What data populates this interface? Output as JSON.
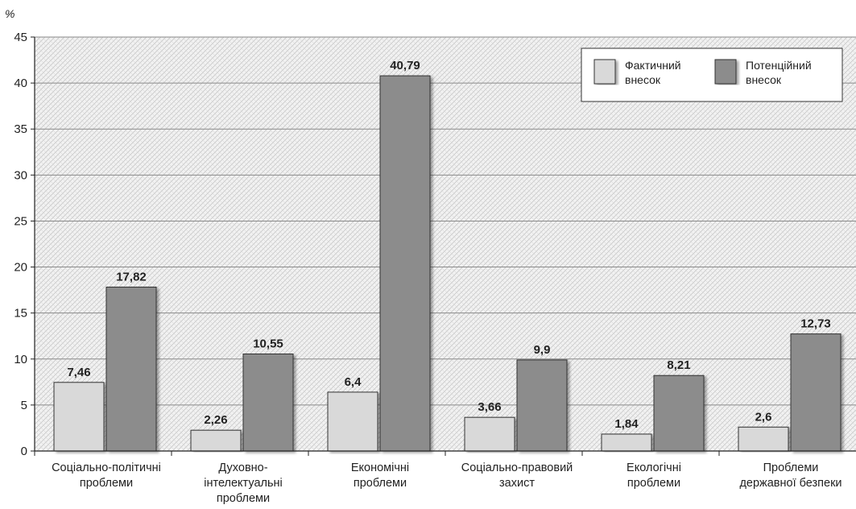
{
  "chart_data": {
    "type": "bar",
    "title": "",
    "xlabel": "",
    "ylabel": "%",
    "ylim": [
      0,
      45
    ],
    "yticks": [
      0,
      5,
      10,
      15,
      20,
      25,
      30,
      35,
      40,
      45
    ],
    "grid": true,
    "legend_position": "top-right",
    "categories": [
      [
        "Соціально-політичні",
        "проблеми"
      ],
      [
        "Духовно-",
        "інтелектуальні",
        "проблеми"
      ],
      [
        "Економічні",
        "проблеми"
      ],
      [
        "Соціально-правовий",
        "захист"
      ],
      [
        "Екологічні",
        "проблеми"
      ],
      [
        "Проблеми",
        "державної безпеки"
      ]
    ],
    "series": [
      {
        "name": [
          "Фактичний",
          "внесок"
        ],
        "color": "#d9d9d9",
        "values": [
          7.46,
          2.26,
          6.4,
          3.66,
          1.84,
          2.6
        ],
        "labels": [
          "7,46",
          "2,26",
          "6,4",
          "3,66",
          "1,84",
          "2,6"
        ]
      },
      {
        "name": [
          "Потенційний",
          "внесок"
        ],
        "color": "#8c8c8c",
        "values": [
          17.82,
          10.55,
          40.79,
          9.9,
          8.21,
          12.73
        ],
        "labels": [
          "17,82",
          "10,55",
          "40,79",
          "9,9",
          "8,21",
          "12,73"
        ]
      }
    ]
  }
}
